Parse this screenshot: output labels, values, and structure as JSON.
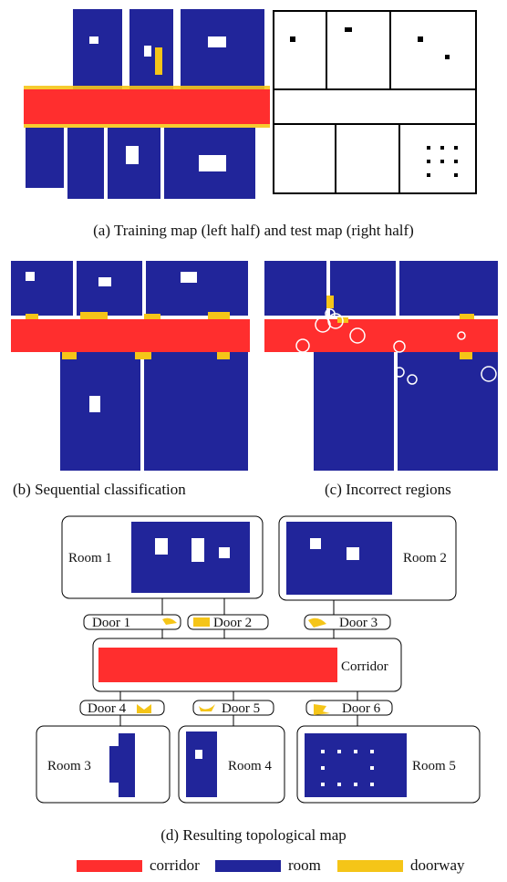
{
  "colors": {
    "corridor": "#ff2e2e",
    "room": "#21259a",
    "doorway": "#f5c518",
    "free": "#ffffff",
    "obstacle": "#000000"
  },
  "captions": {
    "a": "(a) Training map (left half) and test map (right half)",
    "b": "(b) Sequential classification",
    "c": "(c) Incorrect regions",
    "d": "(d) Resulting topological map"
  },
  "topological_map": {
    "rooms": [
      "Room 1",
      "Room 2",
      "Room 3",
      "Room 4",
      "Room 5"
    ],
    "doors": [
      "Door 1",
      "Door 2",
      "Door 3",
      "Door 4",
      "Door 5",
      "Door 6"
    ],
    "corridor": "Corridor"
  },
  "legend": [
    {
      "label": "corridor",
      "color": "#ff2e2e"
    },
    {
      "label": "room",
      "color": "#21259a"
    },
    {
      "label": "doorway",
      "color": "#f5c518"
    }
  ]
}
